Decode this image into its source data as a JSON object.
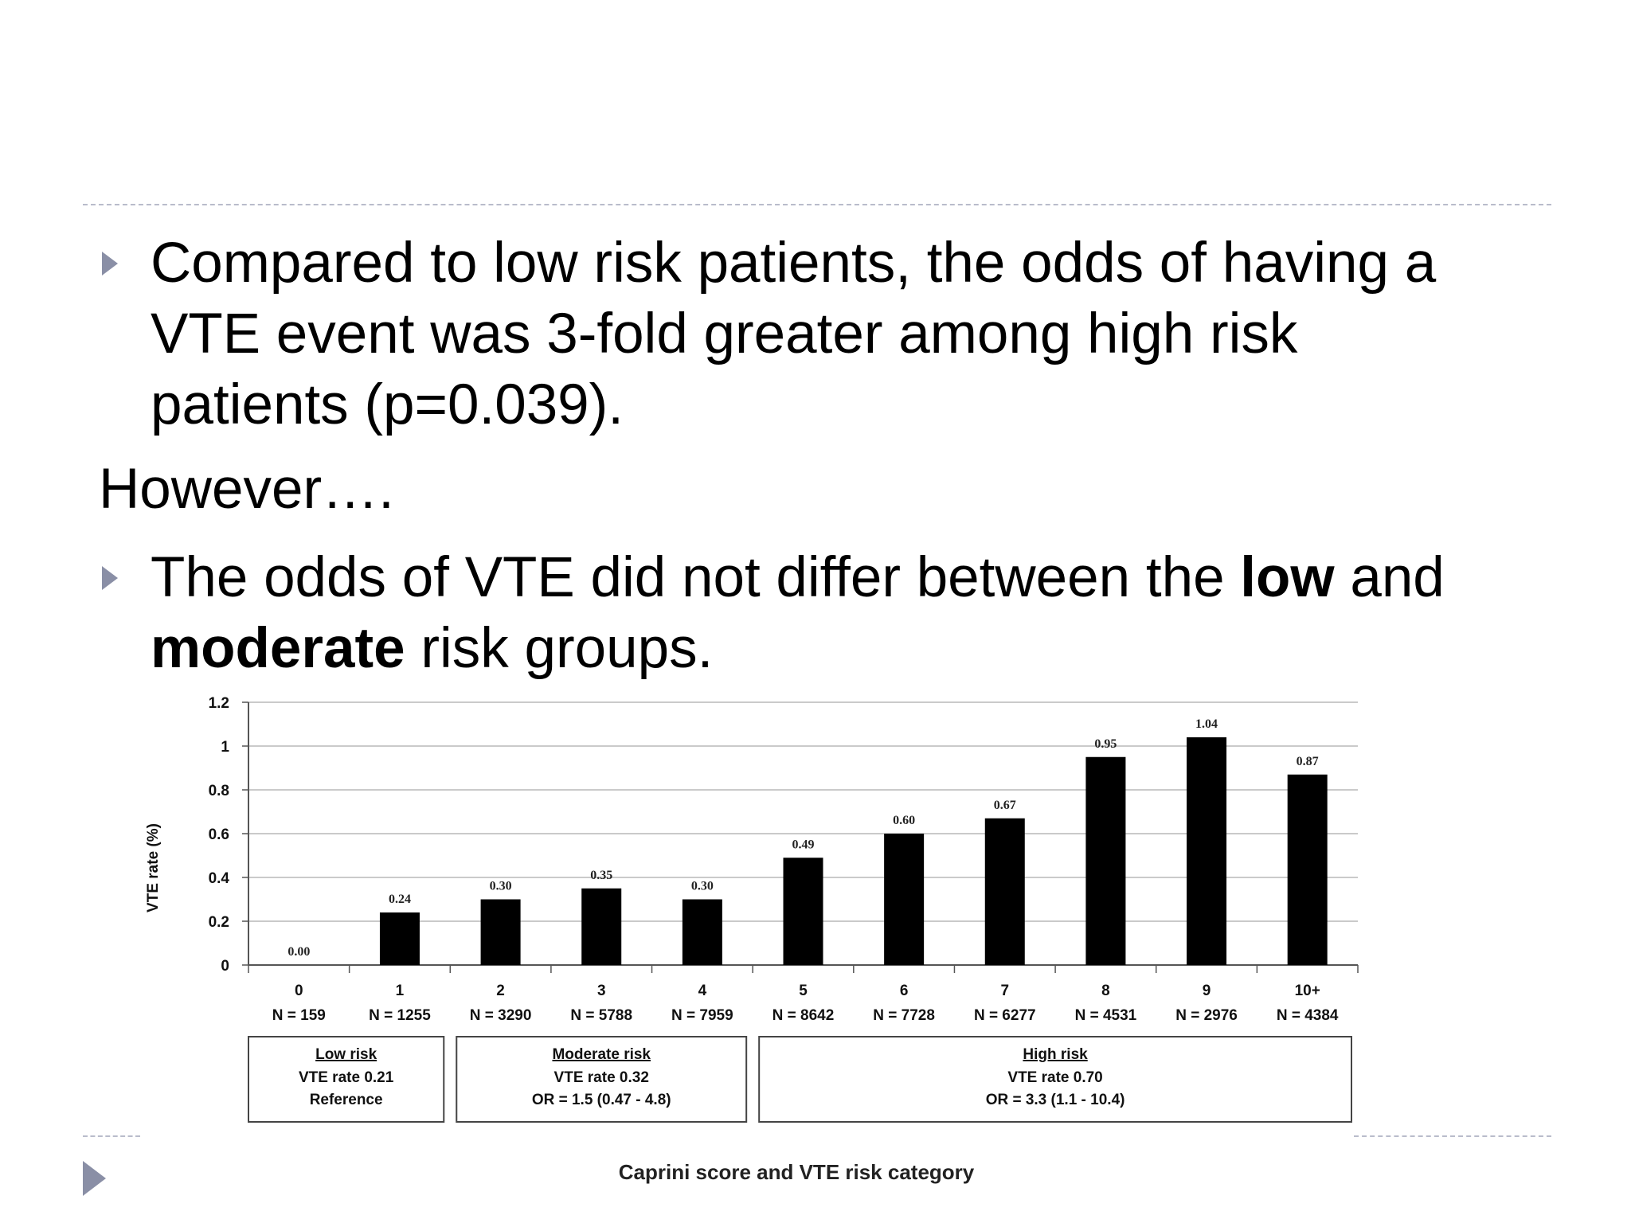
{
  "slide": {
    "bullets": [
      {
        "text": "Compared to low risk patients, the odds of having a VTE event was 3-fold greater among high risk patients (p=0.039)."
      },
      {
        "parts": [
          {
            "text": "The odds of  VTE did not differ between the ",
            "bold": false
          },
          {
            "text": "low",
            "bold": true
          },
          {
            "text": " and ",
            "bold": false
          },
          {
            "text": "moderate",
            "bold": true
          },
          {
            "text": " risk groups.",
            "bold": false
          }
        ]
      }
    ],
    "however": "However….",
    "bullet_line1": "Compared to low risk patients, the odds of having a",
    "bullet_line2": "VTE event was 3-fold greater among high risk",
    "bullet_line3": "patients (p=0.039).",
    "bullet2_part1": "The odds of  VTE did not differ between the ",
    "bullet2_bold1": "low",
    "bullet2_part2": " and",
    "bullet2_bold2": "moderate",
    "bullet2_part3": " risk groups."
  },
  "chart_data": {
    "type": "bar",
    "ylabel": "VTE rate  (%)",
    "xlabel": "Caprini score and VTE risk category",
    "ylim": [
      0,
      1.2
    ],
    "yticks": [
      "0",
      "0.2",
      "0.4",
      "0.6",
      "0.8",
      "1",
      "1.2"
    ],
    "grid": true,
    "bar_color": "#000000",
    "categories": [
      "0",
      "1",
      "2",
      "3",
      "4",
      "5",
      "6",
      "7",
      "8",
      "9",
      "10+"
    ],
    "n_labels": [
      "N = 159",
      "N = 1255",
      "N = 3290",
      "N = 5788",
      "N = 7959",
      "N = 8642",
      "N = 7728",
      "N = 6277",
      "N = 4531",
      "N = 2976",
      "N = 4384"
    ],
    "values": [
      0.0,
      0.24,
      0.3,
      0.35,
      0.3,
      0.49,
      0.6,
      0.67,
      0.95,
      1.04,
      0.87
    ],
    "value_labels": [
      "0.00",
      "0.24",
      "0.30",
      "0.35",
      "0.30",
      "0.49",
      "0.60",
      "0.67",
      "0.95",
      "1.04",
      "0.87"
    ],
    "risk_groups": [
      {
        "title": "Low risk",
        "line1": "VTE rate 0.21",
        "line2": "Reference",
        "from": 0,
        "to": 1
      },
      {
        "title": "Moderate  risk",
        "line1": "VTE rate 0.32",
        "line2": "OR = 1.5 (0.47 - 4.8)",
        "from": 2,
        "to": 4
      },
      {
        "title": "High risk",
        "line1": "VTE rate 0.70",
        "line2": "OR = 3.3 (1.1 - 10.4)",
        "from": 5,
        "to": 10
      }
    ]
  }
}
